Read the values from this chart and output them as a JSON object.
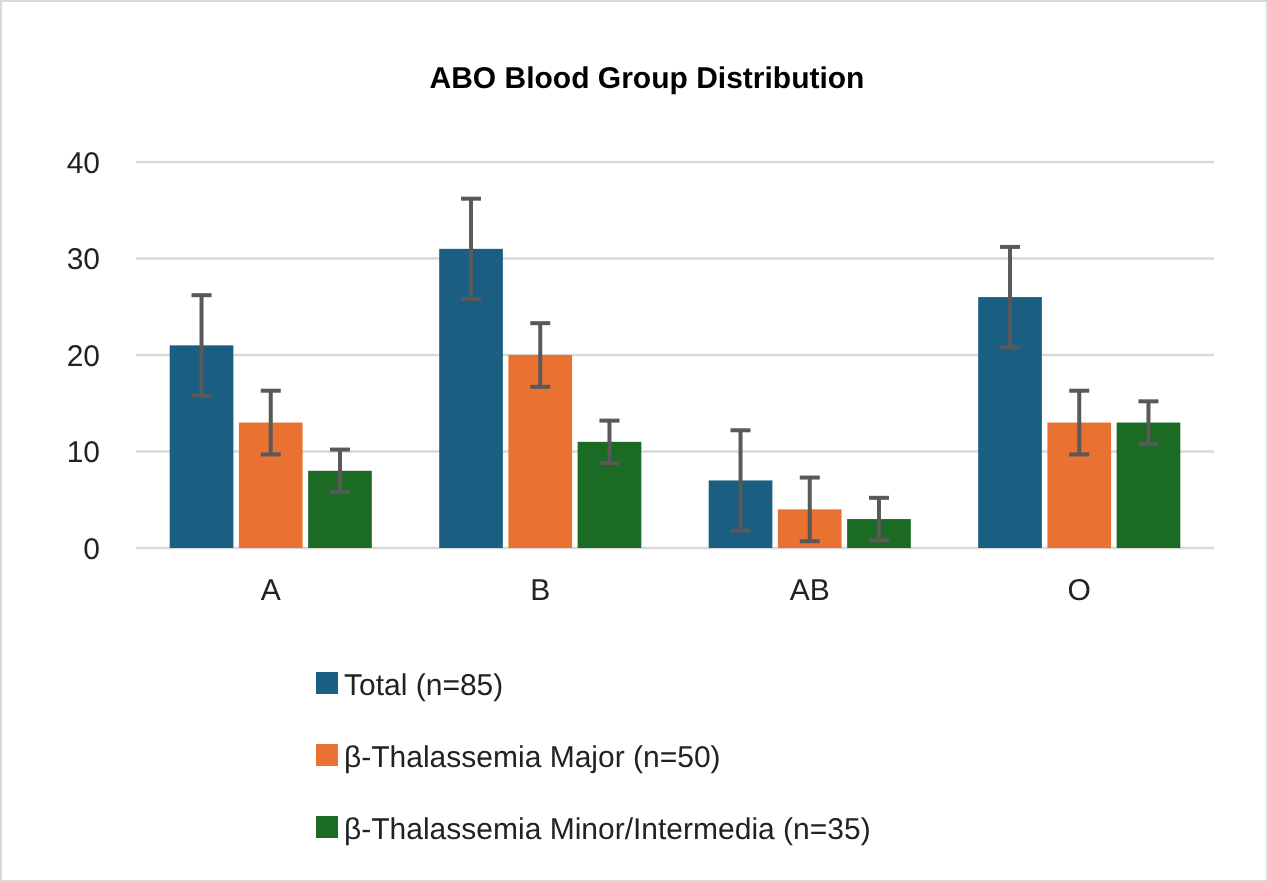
{
  "chart_data": {
    "type": "bar",
    "title": "ABO Blood Group Distribution",
    "categories": [
      "A",
      "B",
      "AB",
      "O"
    ],
    "series": [
      {
        "name": "Total (n=85)",
        "color": "#1a5f82",
        "values": [
          21,
          31,
          7,
          26
        ],
        "errors": [
          5.2,
          5.2,
          5.2,
          5.2
        ]
      },
      {
        "name": "β-Thalassemia Major (n=50)",
        "color": "#e97132",
        "values": [
          13,
          20,
          4,
          13
        ],
        "errors": [
          3.3,
          3.3,
          3.3,
          3.3
        ]
      },
      {
        "name": "β-Thalassemia Minor/Intermedia (n=35)",
        "color": "#1c6b24",
        "values": [
          8,
          11,
          3,
          13
        ],
        "errors": [
          2.2,
          2.2,
          2.2,
          2.2
        ]
      }
    ],
    "ylim": [
      0,
      40
    ],
    "yticks": [
      0,
      10,
      20,
      30,
      40
    ],
    "grid": "y",
    "legend": "bottom"
  }
}
